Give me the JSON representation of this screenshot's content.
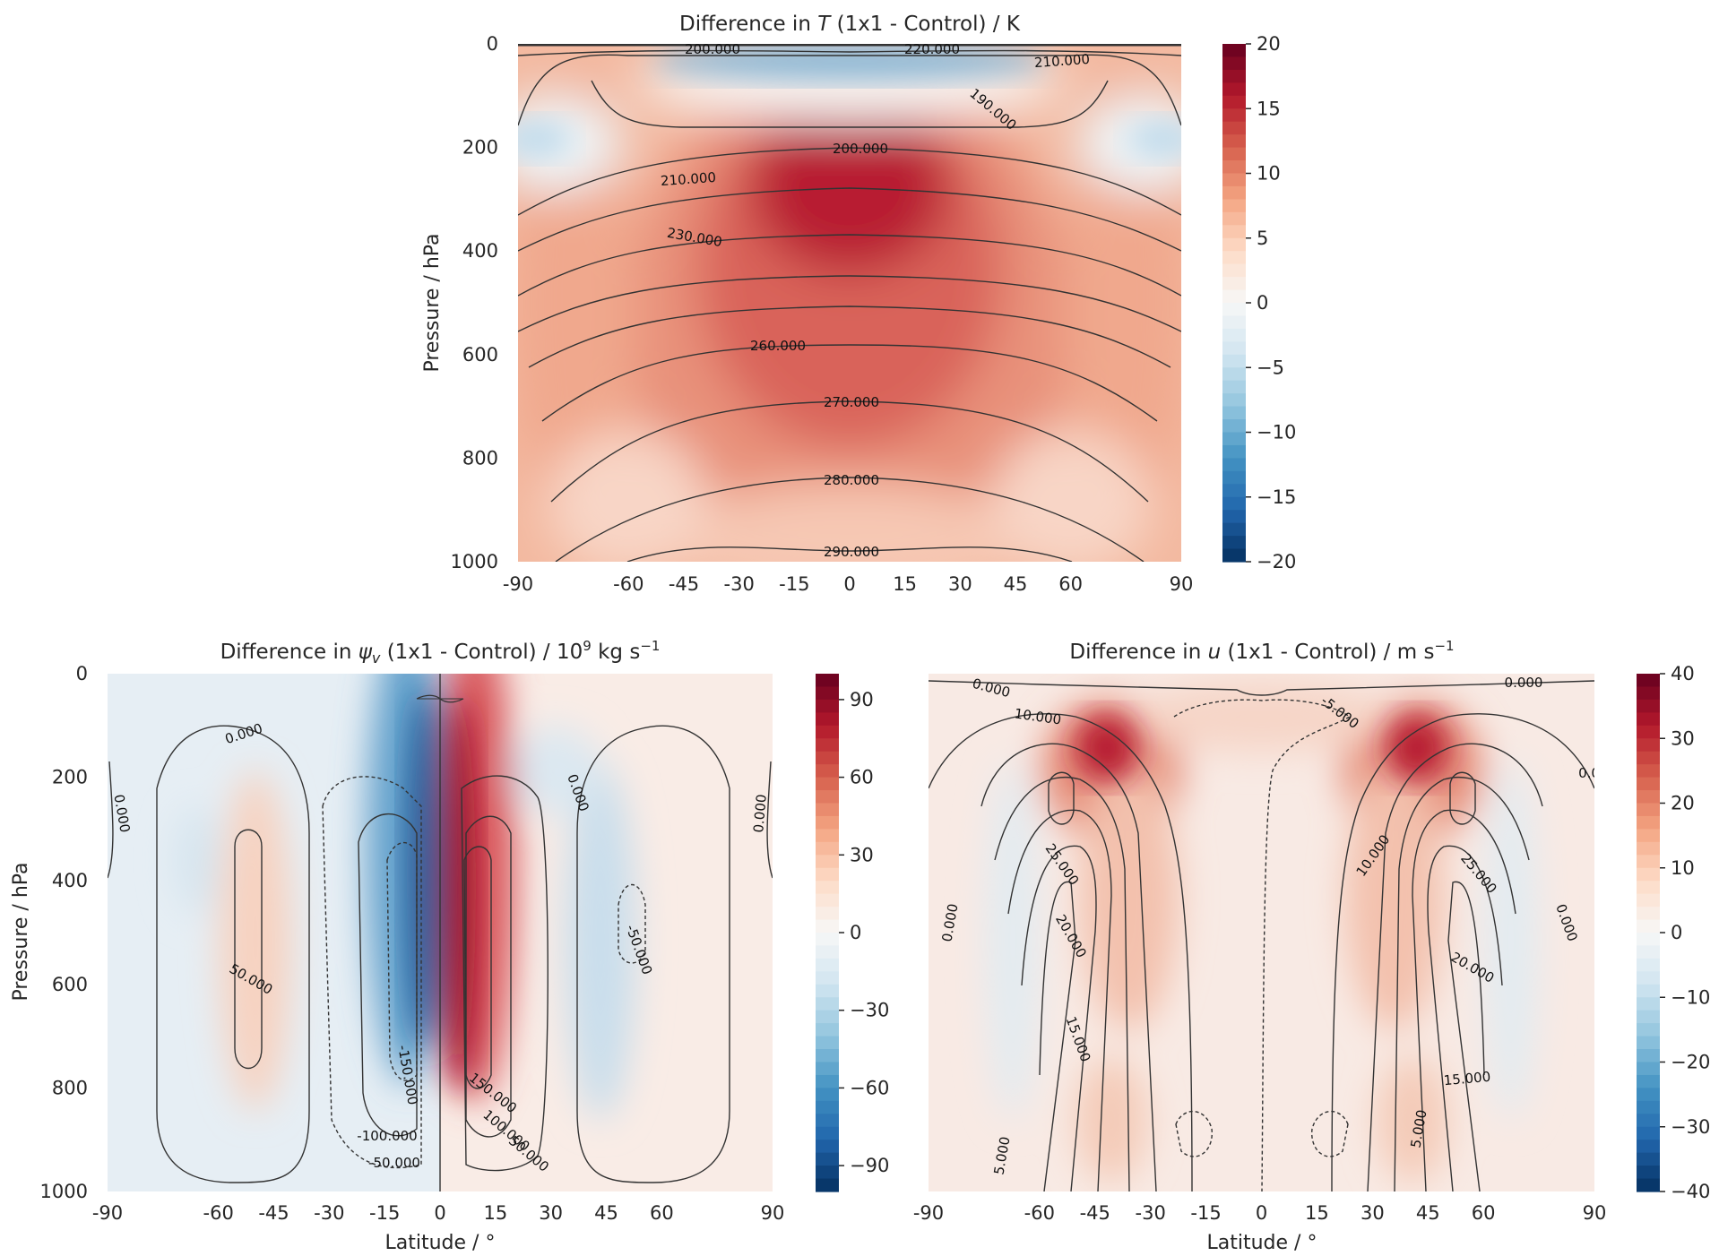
{
  "chart_data": [
    {
      "type": "heatmap",
      "title": "Difference in T (1x1 - Control) / K",
      "title_parts": {
        "pre": "Difference in ",
        "var": "T",
        "post": " (1x1 - Control) / K"
      },
      "xlabel": "",
      "ylabel": "Pressure / hPa",
      "xlim": [
        -90,
        90
      ],
      "ylim": [
        1000,
        0
      ],
      "x_ticks": [
        "-90",
        "-60",
        "-45",
        "-30",
        "-15",
        "0",
        "15",
        "30",
        "45",
        "60",
        "90"
      ],
      "y_ticks": [
        "0",
        "200",
        "400",
        "600",
        "800",
        "1000"
      ],
      "colorbar": {
        "cmap": "RdBu_r",
        "range": [
          -20,
          20
        ],
        "ticks": [
          "20",
          "15",
          "10",
          "5",
          "0",
          "−5",
          "−10",
          "−15",
          "−20"
        ]
      },
      "contour_levels": [
        "190.000",
        "200.000",
        "210.000",
        "220.000",
        "230.000",
        "260.000",
        "270.000",
        "280.000",
        "290.000"
      ],
      "contour_label_text": [
        "200.000",
        "220.000",
        "210.000",
        "190.000",
        "200.000",
        "210.000",
        "230.000",
        "260.000",
        "270.000",
        "280.000",
        "290.000"
      ],
      "features": [
        {
          "kind": "warm_max",
          "lat": 0,
          "p": 300,
          "value": 16
        },
        {
          "kind": "cool_band",
          "lat": 0,
          "p": 40,
          "value": -6
        },
        {
          "kind": "cool_max",
          "lat": -78,
          "p": 190,
          "value": -2
        },
        {
          "kind": "cool_max",
          "lat": 78,
          "p": 190,
          "value": -2
        }
      ]
    },
    {
      "type": "heatmap",
      "title": "Difference in ψv (1x1 - Control) / 10⁹ kg s⁻¹",
      "title_parts": {
        "pre": "Difference in ",
        "var": "ψ",
        "sub": "v",
        "post": " (1x1 - Control) / 10",
        "sup": "9",
        "post2": " kg s",
        "sup2": "−1"
      },
      "xlabel": "Latitude / °",
      "ylabel": "Pressure / hPa",
      "xlim": [
        -90,
        90
      ],
      "ylim": [
        1000,
        0
      ],
      "x_ticks": [
        "-90",
        "-60",
        "-45",
        "-30",
        "-15",
        "0",
        "15",
        "30",
        "45",
        "60",
        "90"
      ],
      "y_ticks": [
        "0",
        "200",
        "400",
        "600",
        "800",
        "1000"
      ],
      "colorbar": {
        "cmap": "RdBu_r",
        "range": [
          -100,
          100
        ],
        "ticks": [
          "90",
          "60",
          "30",
          "0",
          "−30",
          "−60",
          "−90"
        ]
      },
      "contour_levels": [
        "-150.000",
        "-100.000",
        "-50.000",
        "0.000",
        "50.000",
        "100.000",
        "150.000"
      ],
      "contour_label_text": [
        "0.000",
        "0.000",
        "0.000",
        "0.000",
        "50.000",
        "-50.000",
        "-150.000",
        "-100.000",
        "-50.000",
        "150.000",
        "100.000",
        "50.000"
      ],
      "features": [
        {
          "kind": "neg_max",
          "lat": -3,
          "p": 550,
          "value": -95
        },
        {
          "kind": "pos_max",
          "lat": 5,
          "p": 600,
          "value": 95
        },
        {
          "kind": "weak_pos",
          "lat": -33,
          "p": 700,
          "value": 8
        },
        {
          "kind": "weak_neg",
          "lat": 40,
          "p": 650,
          "value": -12
        }
      ]
    },
    {
      "type": "heatmap",
      "title": "Difference in u (1x1 - Control) / m s⁻¹",
      "title_parts": {
        "pre": "Difference in ",
        "var": "u",
        "post": " (1x1 - Control) / m s",
        "sup": "−1"
      },
      "xlabel": "Latitude / °",
      "ylabel": "",
      "xlim": [
        -90,
        90
      ],
      "ylim": [
        1000,
        0
      ],
      "x_ticks": [
        "-90",
        "-60",
        "-45",
        "-30",
        "-15",
        "0",
        "15",
        "30",
        "45",
        "60",
        "90"
      ],
      "y_ticks": [],
      "colorbar": {
        "cmap": "RdBu_r",
        "range": [
          -40,
          40
        ],
        "ticks": [
          "40",
          "30",
          "20",
          "10",
          "0",
          "−10",
          "−20",
          "−30",
          "−40"
        ]
      },
      "contour_levels": [
        "-5.000",
        "0.000",
        "5.000",
        "10.000",
        "15.000",
        "20.000",
        "25.000"
      ],
      "contour_label_text": [
        "0.000",
        "0.000",
        "10.000",
        "-5.000",
        "0.0",
        "25.000",
        "20.000",
        "15.000",
        "5.000",
        "0.000",
        "10.000",
        "25.000",
        "20.000",
        "15.000",
        "5.000",
        "0.000"
      ],
      "features": [
        {
          "kind": "jet_max",
          "lat": -28,
          "p": 160,
          "value": 35
        },
        {
          "kind": "jet_max",
          "lat": 28,
          "p": 160,
          "value": 35
        },
        {
          "kind": "weak_neg",
          "lat": -50,
          "p": 500,
          "value": -4
        },
        {
          "kind": "weak_neg",
          "lat": 50,
          "p": 500,
          "value": -4
        }
      ]
    }
  ]
}
